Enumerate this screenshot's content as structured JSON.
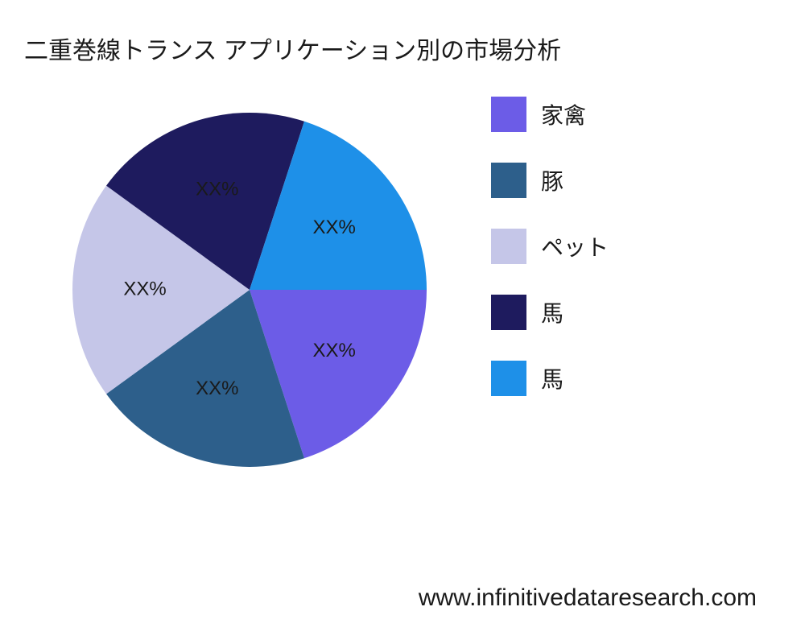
{
  "title": "二重巻線トランス アプリケーション別の市場分析",
  "footer": "www.infinitivedataresearch.com",
  "chart": {
    "type": "pie",
    "background_color": "#ffffff",
    "title_fontsize": 30,
    "label_fontsize": 24,
    "legend_fontsize": 28,
    "slices": [
      {
        "label": "家禽",
        "value": 20,
        "color": "#6c5ce7",
        "display": "XX%"
      },
      {
        "label": "豚",
        "value": 20,
        "color": "#2d5f8b",
        "display": "XX%"
      },
      {
        "label": "ペット",
        "value": 20,
        "color": "#c5c6e8",
        "display": "XX%"
      },
      {
        "label": "馬",
        "value": 20,
        "color": "#1e1b5e",
        "display": "XX%"
      },
      {
        "label": "馬",
        "value": 20,
        "color": "#1e90e8",
        "display": "XX%"
      }
    ]
  }
}
